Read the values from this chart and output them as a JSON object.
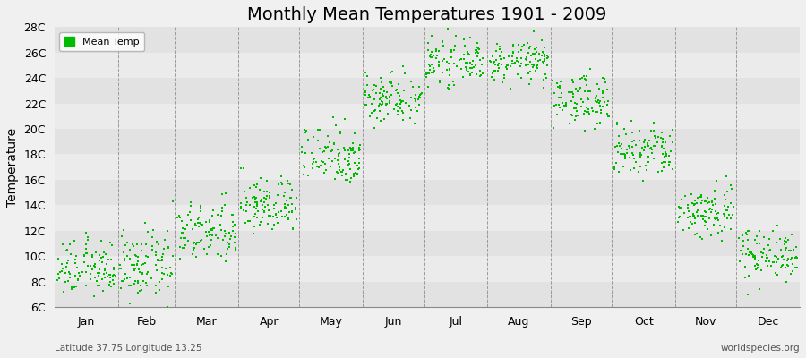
{
  "title": "Monthly Mean Temperatures 1901 - 2009",
  "ylabel": "Temperature",
  "xlabel_months": [
    "Jan",
    "Feb",
    "Mar",
    "Apr",
    "May",
    "Jun",
    "Jul",
    "Aug",
    "Sep",
    "Oct",
    "Nov",
    "Dec"
  ],
  "subtitle_left": "Latitude 37.75 Longitude 13.25",
  "subtitle_right": "worldspecies.org",
  "legend_label": "Mean Temp",
  "dot_color": "#00bb00",
  "bg_color": "#f0f0f0",
  "band_dark": "#e2e2e2",
  "band_light": "#ebebeb",
  "ylim": [
    6,
    28
  ],
  "ytick_labels": [
    "6C",
    "8C",
    "10C",
    "12C",
    "14C",
    "16C",
    "18C",
    "20C",
    "22C",
    "24C",
    "26C",
    "28C"
  ],
  "ytick_values": [
    6,
    8,
    10,
    12,
    14,
    16,
    18,
    20,
    22,
    24,
    26,
    28
  ],
  "monthly_means": [
    9.0,
    9.2,
    11.8,
    14.0,
    18.0,
    22.5,
    25.2,
    25.3,
    22.3,
    18.2,
    13.5,
    10.2
  ],
  "monthly_stds": [
    1.1,
    1.3,
    1.2,
    1.1,
    1.2,
    1.0,
    0.8,
    0.8,
    1.0,
    1.1,
    1.1,
    1.0
  ],
  "n_years": 109,
  "marker_size": 3.5,
  "title_fontsize": 14,
  "axis_fontsize": 10,
  "tick_fontsize": 9,
  "grid_color": "#888888",
  "vline_color": "#888888"
}
